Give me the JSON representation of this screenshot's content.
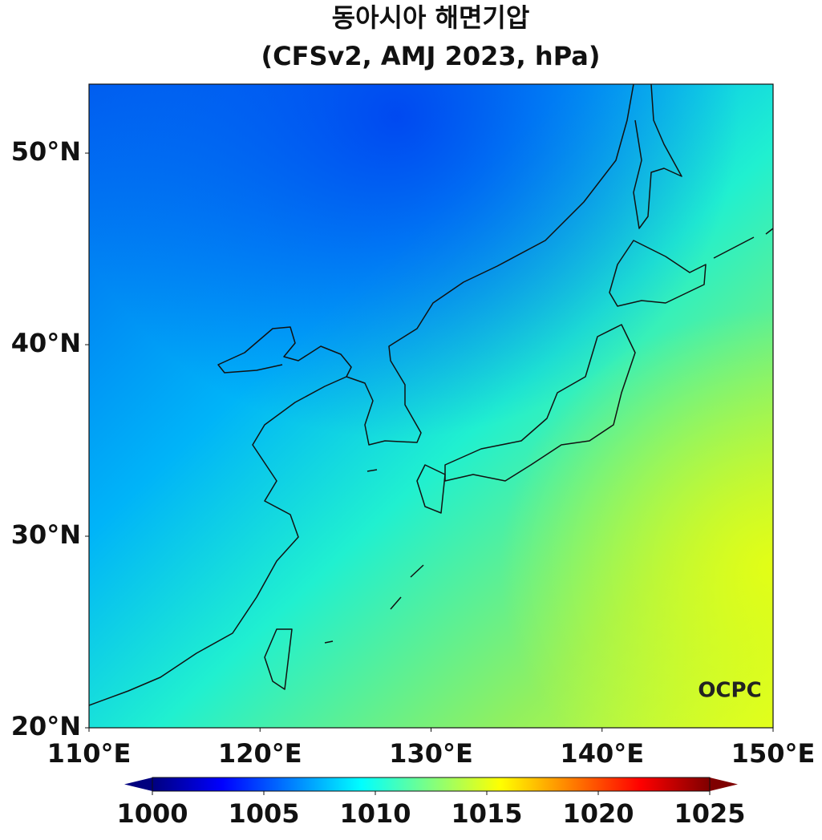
{
  "map": {
    "title": "동아시아 해면기압",
    "subtitle": "(CFSv2, AMJ 2023, hPa)",
    "xlim": [
      110,
      150
    ],
    "ylim": [
      20,
      53.6
    ],
    "xticks": [
      {
        "value": 110,
        "label": "110°E"
      },
      {
        "value": 120,
        "label": "120°E"
      },
      {
        "value": 130,
        "label": "130°E"
      },
      {
        "value": 140,
        "label": "140°E"
      },
      {
        "value": 150,
        "label": "150°E"
      }
    ],
    "yticks": [
      {
        "value": 20,
        "label": "20°N"
      },
      {
        "value": 30,
        "label": "30°N"
      },
      {
        "value": 40,
        "label": "40°N"
      },
      {
        "value": 50,
        "label": "50°N"
      }
    ],
    "colorbar": {
      "lim": [
        1000,
        1025
      ],
      "ticks": [
        1000,
        1005,
        1010,
        1015,
        1020,
        1025
      ],
      "colors": [
        "#00007f",
        "#0000ff",
        "#0080ff",
        "#00ffff",
        "#80ff80",
        "#ffff00",
        "#ff8000",
        "#ff0000",
        "#7f0000"
      ]
    },
    "logo": "OCPC"
  }
}
